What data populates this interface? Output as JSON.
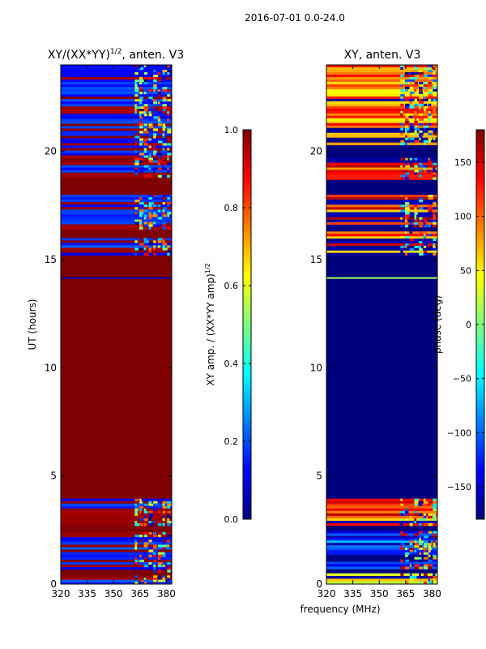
{
  "figure_title": "2016-07-01 0.0-24.0",
  "xlabel_shared": "frequency (MHz)",
  "colors": {
    "jet_stops": [
      "#00007f",
      "#0000ff",
      "#007fff",
      "#00ffff",
      "#7fff7f",
      "#ffff00",
      "#ff7f00",
      "#ff0000",
      "#7f0000"
    ]
  },
  "chart_data": [
    {
      "type": "heatmap",
      "title_main": "XY/(XX*YY)",
      "title_sup": "1/2",
      "title_rest": ", anten. V3",
      "ylabel": "UT (hours)",
      "xlim": [
        320,
        383
      ],
      "ylim": [
        0,
        24
      ],
      "xticks": [
        320,
        335,
        350,
        365,
        380
      ],
      "yticks": [
        0,
        5,
        10,
        15,
        20
      ],
      "colorbar": {
        "label_main": "XY amp. / (XX*YY amp)",
        "label_sup": "1/2",
        "range": [
          0.0,
          1.0
        ],
        "ticks": [
          0.0,
          0.2,
          0.4,
          0.6,
          0.8,
          1.0
        ],
        "tick_labels": [
          "0.0",
          "0.2",
          "0.4",
          "0.6",
          "0.8",
          "1.0"
        ]
      },
      "background_value": 1.0,
      "bands": [
        {
          "start": 0.0,
          "end": 0.4,
          "value": 0.12,
          "noisy": true
        },
        {
          "start": 0.55,
          "end": 2.4,
          "value": 0.1,
          "noisy": true
        },
        {
          "start": 2.7,
          "end": 3.95,
          "value": 0.1,
          "noisy": true
        },
        {
          "start": 15.2,
          "end": 16.0,
          "value": 0.1,
          "noisy": true
        },
        {
          "start": 16.4,
          "end": 18.0,
          "value": 0.1,
          "noisy": true
        },
        {
          "start": 18.8,
          "end": 24.0,
          "value": 0.1,
          "noisy": true
        }
      ],
      "lines": [
        {
          "y": 14.15,
          "value": 0.05
        }
      ]
    },
    {
      "type": "heatmap",
      "title": "XY, anten. V3",
      "xlim": [
        320,
        383
      ],
      "ylim": [
        0,
        24
      ],
      "xticks": [
        320,
        335,
        350,
        365,
        380
      ],
      "yticks": [
        0,
        5,
        10,
        15,
        20
      ],
      "colorbar": {
        "label": "phase (deg)",
        "range": [
          -180,
          180
        ],
        "ticks": [
          -150,
          -100,
          -50,
          0,
          50,
          100,
          150
        ],
        "tick_labels": [
          "−150",
          "−100",
          "−50",
          "0",
          "50",
          "100",
          "150"
        ]
      },
      "background_value": -180,
      "bands": [
        {
          "start": 0.0,
          "end": 0.5,
          "value": 60,
          "noisy": true
        },
        {
          "start": 0.7,
          "end": 2.45,
          "value": -120,
          "noisy": true
        },
        {
          "start": 2.7,
          "end": 3.95,
          "value": 100,
          "noisy": true
        },
        {
          "start": 15.2,
          "end": 16.3,
          "value": 100,
          "noisy": true
        },
        {
          "start": 16.5,
          "end": 18.0,
          "value": 110,
          "noisy": true
        },
        {
          "start": 18.7,
          "end": 19.7,
          "value": 110,
          "noisy": true
        },
        {
          "start": 20.3,
          "end": 24.0,
          "value": 90,
          "noisy": true
        }
      ],
      "lines": [
        {
          "y": 14.15,
          "value": 10
        }
      ]
    }
  ]
}
